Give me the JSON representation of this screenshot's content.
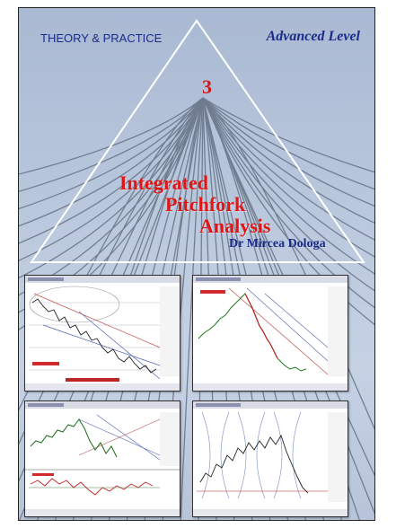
{
  "cover": {
    "series": "THEORY & PRACTICE",
    "level": "Advanced Level",
    "volume": "3",
    "title_lines": [
      "Integrated",
      "Pitchfork",
      "Analysis"
    ],
    "author": "Dr Mircea Dologa"
  },
  "panels": [
    {
      "name": "chart-panel-1",
      "icon": "stock-chart-icon"
    },
    {
      "name": "chart-panel-2",
      "icon": "stock-chart-icon"
    },
    {
      "name": "chart-panel-3",
      "icon": "stock-chart-icon"
    },
    {
      "name": "chart-panel-4",
      "icon": "stock-chart-icon"
    }
  ],
  "colors": {
    "title_red": "#e01515",
    "header_blue": "#1c2a8a",
    "background": "#b8c6dc"
  }
}
